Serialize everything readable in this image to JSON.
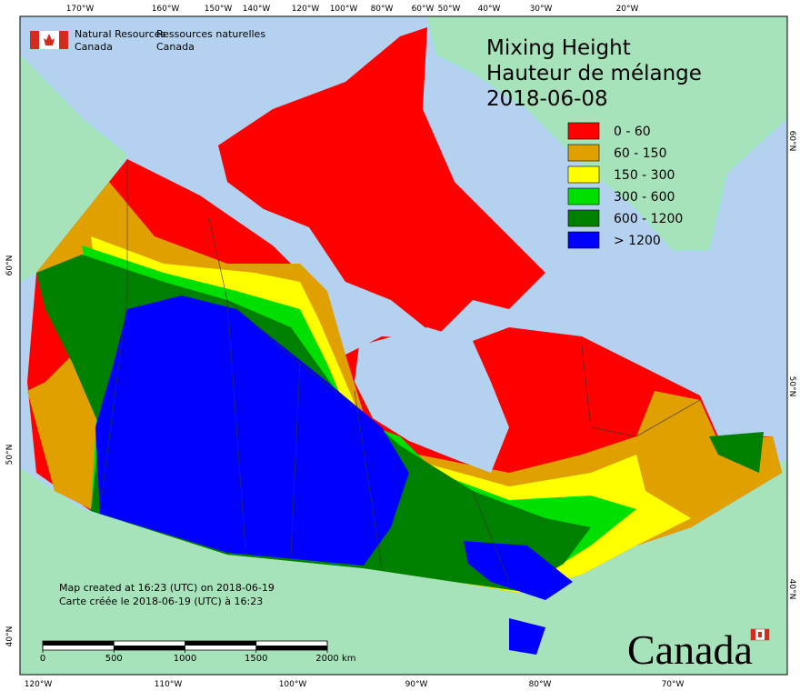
{
  "header": {
    "agency_en": [
      "Natural Resources",
      "Canada"
    ],
    "agency_fr": [
      "Ressources naturelles",
      "Canada"
    ]
  },
  "title": {
    "lines": [
      "Mixing Height",
      "Hauteur de mélange",
      "2018-06-08"
    ]
  },
  "legend": {
    "items": [
      {
        "label": "0 - 60",
        "color": "#ff0000"
      },
      {
        "label": "60 - 150",
        "color": "#e0a000"
      },
      {
        "label": "150 - 300",
        "color": "#ffff00"
      },
      {
        "label": "300 - 600",
        "color": "#00e000"
      },
      {
        "label": "600 - 1200",
        "color": "#008000"
      },
      {
        "label": "> 1200",
        "color": "#0000ff"
      }
    ]
  },
  "graticule": {
    "top": [
      "170°W",
      "160°W",
      "150°W",
      "140°W",
      "120°W",
      "100°W",
      "80°W",
      "60°W",
      "50°W",
      "40°W",
      "30°W",
      "20°W"
    ],
    "bottom": [
      "120°W",
      "110°W",
      "100°W",
      "90°W",
      "80°W",
      "70°W"
    ],
    "left": [
      "60°N",
      "50°N",
      "40°N"
    ],
    "right": [
      "60°N",
      "50°N",
      "40°N"
    ]
  },
  "credits": [
    "Map created at 16:23 (UTC) on 2018-06-19",
    "Carte créée le 2018-06-19 (UTC) à 16:23"
  ],
  "scale_bar": {
    "ticks": [
      0,
      500,
      1000,
      1500,
      2000
    ],
    "unit": "km"
  },
  "wordmark": "Canada"
}
